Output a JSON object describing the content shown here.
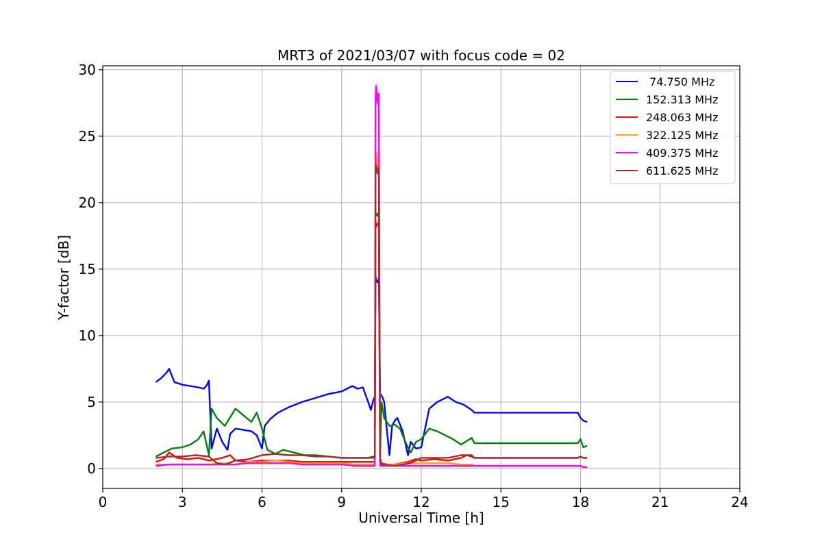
{
  "chart_data": {
    "type": "line",
    "title": "MRT3 of 2021/03/07 with focus code = 02",
    "xlabel": "Universal Time [h]",
    "ylabel": "Y-factor [dB]",
    "xlim": [
      0,
      24
    ],
    "ylim": [
      -1.5,
      30.3
    ],
    "xticks": [
      0,
      3,
      6,
      9,
      12,
      15,
      18,
      21,
      24
    ],
    "yticks": [
      0,
      5,
      10,
      15,
      20,
      25,
      30
    ],
    "grid": true,
    "legend_position": "top-right",
    "series": [
      {
        "name": " 74.750 MHz",
        "color": "#0000ff",
        "x": [
          2.0,
          2.2,
          2.4,
          2.5,
          2.7,
          3.0,
          3.3,
          3.6,
          3.8,
          3.9,
          4.0,
          4.1,
          4.3,
          4.5,
          4.7,
          4.8,
          5.0,
          5.3,
          5.6,
          5.8,
          6.0,
          6.1,
          6.3,
          6.6,
          7.0,
          7.5,
          8.0,
          8.5,
          9.0,
          9.2,
          9.4,
          9.6,
          9.8,
          10.0,
          10.1,
          10.2,
          10.25,
          10.28,
          10.3,
          10.35,
          10.4,
          10.45,
          10.5,
          10.55,
          10.6,
          10.7,
          10.8,
          10.9,
          11.0,
          11.1,
          11.3,
          11.5,
          11.6,
          11.8,
          12.0,
          12.3,
          12.6,
          13.0,
          13.3,
          13.6,
          13.9,
          14.0,
          15.0,
          16.0,
          17.0,
          17.9,
          18.0,
          18.1,
          18.25
        ],
        "y": [
          6.5,
          6.8,
          7.2,
          7.5,
          6.5,
          6.3,
          6.2,
          6.1,
          6.0,
          6.2,
          6.6,
          1.5,
          3.0,
          2.0,
          1.4,
          2.6,
          3.0,
          2.9,
          2.8,
          2.5,
          1.5,
          3.2,
          3.7,
          4.2,
          4.6,
          5.0,
          5.3,
          5.6,
          5.8,
          6.0,
          6.2,
          6.0,
          6.1,
          5.0,
          4.4,
          5.2,
          5.4,
          14.5,
          14.2,
          14.0,
          14.3,
          5.6,
          5.5,
          5.3,
          5.0,
          3.0,
          1.0,
          3.2,
          3.6,
          3.8,
          2.8,
          1.0,
          2.0,
          1.5,
          1.6,
          4.5,
          5.0,
          5.4,
          5.0,
          4.8,
          4.4,
          4.2,
          4.2,
          4.2,
          4.2,
          4.2,
          3.8,
          3.6,
          3.5
        ]
      },
      {
        "name": "152.313 MHz",
        "color": "#008000",
        "x": [
          2.0,
          2.3,
          2.6,
          3.0,
          3.3,
          3.6,
          3.8,
          4.0,
          4.1,
          4.3,
          4.6,
          5.0,
          5.3,
          5.6,
          5.8,
          6.0,
          6.2,
          6.5,
          6.8,
          7.2,
          7.6,
          8.0,
          8.5,
          9.0,
          9.5,
          10.0,
          10.2,
          10.25,
          10.28,
          10.3,
          10.35,
          10.4,
          10.45,
          10.5,
          10.6,
          10.8,
          11.0,
          11.2,
          11.4,
          11.6,
          11.8,
          12.0,
          12.3,
          12.6,
          12.9,
          13.2,
          13.5,
          13.9,
          14.0,
          15.0,
          16.0,
          17.0,
          17.9,
          18.0,
          18.1,
          18.25
        ],
        "y": [
          0.9,
          1.2,
          1.5,
          1.6,
          1.8,
          2.2,
          2.8,
          1.0,
          4.5,
          3.8,
          3.2,
          4.5,
          4.0,
          3.5,
          4.2,
          3.0,
          1.4,
          1.1,
          1.4,
          1.2,
          1.0,
          1.0,
          0.9,
          0.8,
          0.8,
          0.8,
          0.9,
          0.9,
          19.0,
          19.2,
          19.0,
          19.3,
          0.9,
          5.0,
          3.8,
          3.2,
          3.3,
          3.0,
          2.0,
          1.2,
          2.0,
          2.2,
          3.0,
          2.8,
          2.5,
          2.2,
          1.8,
          2.3,
          1.9,
          1.9,
          1.9,
          1.9,
          1.9,
          2.2,
          1.6,
          1.7
        ]
      },
      {
        "name": "248.063 MHz",
        "color": "#ff0000",
        "x": [
          2.0,
          2.3,
          2.5,
          2.8,
          3.2,
          3.6,
          4.0,
          4.5,
          4.8,
          5.0,
          5.5,
          6.0,
          6.5,
          7.0,
          7.5,
          8.0,
          8.5,
          9.0,
          9.5,
          10.0,
          10.2,
          10.25,
          10.28,
          10.3,
          10.35,
          10.4,
          10.45,
          10.5,
          10.7,
          11.0,
          11.5,
          11.8,
          12.0,
          12.5,
          13.0,
          13.5,
          13.7,
          13.9,
          14.0,
          15.0,
          16.0,
          17.0,
          17.9,
          18.0,
          18.1,
          18.25
        ],
        "y": [
          0.5,
          0.7,
          1.2,
          0.8,
          0.7,
          0.8,
          0.6,
          0.8,
          1.0,
          0.6,
          0.5,
          0.6,
          0.6,
          0.6,
          0.5,
          0.5,
          0.5,
          0.5,
          0.5,
          0.5,
          0.5,
          0.5,
          18.5,
          18.2,
          18.4,
          18.6,
          0.5,
          0.4,
          0.3,
          0.3,
          0.5,
          0.7,
          0.6,
          0.7,
          0.6,
          0.8,
          1.0,
          0.9,
          0.8,
          0.8,
          0.8,
          0.8,
          0.8,
          0.9,
          0.8,
          0.8
        ]
      },
      {
        "name": "322.125 MHz",
        "color": "#ffa500",
        "x": [
          2.0,
          2.5,
          3.0,
          3.5,
          4.0,
          4.5,
          5.0,
          5.5,
          6.0,
          6.5,
          7.0,
          7.5,
          8.0,
          8.5,
          9.0,
          9.5,
          10.0,
          10.2,
          10.25,
          10.28,
          10.3,
          10.35,
          10.4,
          10.45,
          10.5,
          11.0,
          11.5,
          12.0,
          12.5,
          13.0,
          13.5,
          13.9,
          14.0
        ],
        "y": [
          0.3,
          0.3,
          0.3,
          0.3,
          0.3,
          0.4,
          0.3,
          0.5,
          0.5,
          0.6,
          0.5,
          0.4,
          0.4,
          0.4,
          0.4,
          0.3,
          0.3,
          0.3,
          0.3,
          23.0,
          23.8,
          22.5,
          24.0,
          0.3,
          0.3,
          0.3,
          0.4,
          0.4,
          0.4,
          0.4,
          0.3,
          0.3,
          0.2
        ]
      },
      {
        "name": "409.375 MHz",
        "color": "#ff00ff",
        "x": [
          2.0,
          2.5,
          3.0,
          3.5,
          4.0,
          4.5,
          5.0,
          5.5,
          6.0,
          6.5,
          7.0,
          7.5,
          8.0,
          8.5,
          9.0,
          9.5,
          10.0,
          10.2,
          10.25,
          10.28,
          10.3,
          10.35,
          10.4,
          10.45,
          10.5,
          11.0,
          11.5,
          12.0,
          12.5,
          13.0,
          13.5,
          13.9,
          14.0,
          15.0,
          16.0,
          17.0,
          17.9,
          18.0,
          18.1,
          18.25
        ],
        "y": [
          0.2,
          0.3,
          0.3,
          0.3,
          0.3,
          0.3,
          0.3,
          0.4,
          0.4,
          0.4,
          0.4,
          0.3,
          0.3,
          0.3,
          0.3,
          0.2,
          0.2,
          0.2,
          0.2,
          28.0,
          28.8,
          27.5,
          28.2,
          0.2,
          0.2,
          0.2,
          0.2,
          0.2,
          0.2,
          0.2,
          0.2,
          0.2,
          0.2,
          0.2,
          0.2,
          0.2,
          0.2,
          0.2,
          0.1,
          0.1
        ]
      },
      {
        "name": "611.625 MHz",
        "color": "#a52a2a",
        "x": [
          2.0,
          2.5,
          3.0,
          3.5,
          4.0,
          4.3,
          4.6,
          5.0,
          5.5,
          6.0,
          6.5,
          7.0,
          7.5,
          8.0,
          8.5,
          9.0,
          9.5,
          10.0,
          10.2,
          10.25,
          10.28,
          10.3,
          10.35,
          10.4,
          10.45,
          10.5,
          11.0,
          11.3,
          11.6,
          12.0,
          12.5,
          13.0,
          13.5,
          13.9,
          14.0,
          15.0,
          16.0,
          17.0,
          17.9,
          18.0,
          18.1,
          18.25
        ],
        "y": [
          0.8,
          0.9,
          0.9,
          1.0,
          0.9,
          0.4,
          0.3,
          0.6,
          0.7,
          1.0,
          1.1,
          1.0,
          1.0,
          0.9,
          0.9,
          0.8,
          0.8,
          0.8,
          0.8,
          0.8,
          22.5,
          22.8,
          22.2,
          22.6,
          0.8,
          0.3,
          0.2,
          0.3,
          0.4,
          0.8,
          0.8,
          0.8,
          1.0,
          1.0,
          0.8,
          0.8,
          0.8,
          0.8,
          0.8,
          0.9,
          0.8,
          0.8
        ]
      }
    ]
  }
}
